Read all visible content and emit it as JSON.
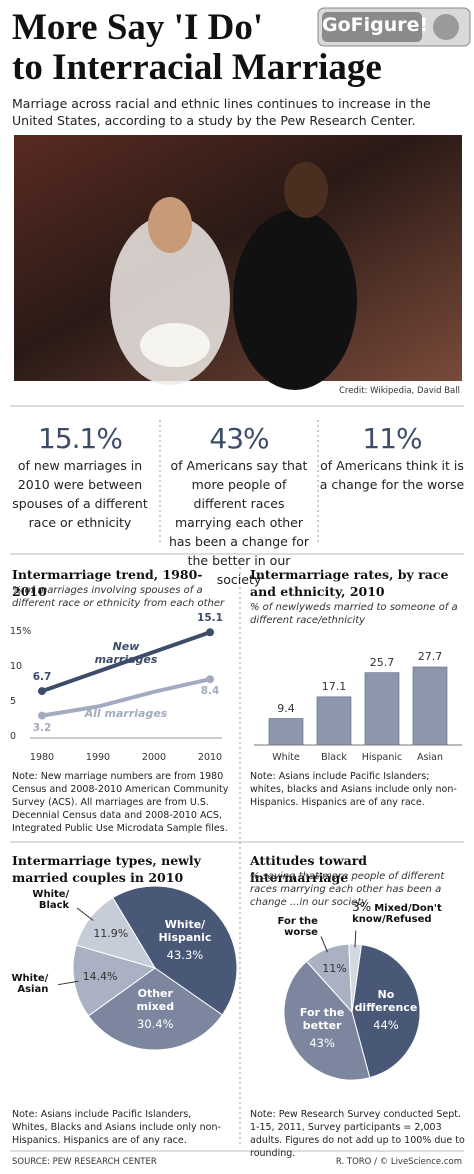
{
  "header": {
    "title_line1": "More Say 'I Do'",
    "title_line2": "to Interracial Marriage",
    "logo": "GoFigure!",
    "subtitle": "Marriage across racial and ethnic lines continues to increase in the United States, according to a study by the Pew Research Center.",
    "photo_credit": "Credit: Wikipedia, David Ball"
  },
  "stats": [
    {
      "figure": "15.1%",
      "text": "of new marriages in 2010 were between spouses of a different race or ethnicity"
    },
    {
      "figure": "43%",
      "text": "of Americans say that more people of different races marrying each other has been a change for the better in our society"
    },
    {
      "figure": "11%",
      "text": "of Americans think it is a change for the worse"
    }
  ],
  "chart_data": [
    {
      "type": "line",
      "title": "Intermarriage trend, 1980-2010",
      "subtitle": "% of marriages involving spouses of a different race or ethnicity from each other",
      "x": [
        1980,
        1990,
        2000,
        2010
      ],
      "series": [
        {
          "name": "New marriages",
          "color": "#3e4c6b",
          "values": [
            6.7,
            9.5,
            12.3,
            15.1
          ]
        },
        {
          "name": "All marriages",
          "color": "#a3abbf",
          "values": [
            3.2,
            4.5,
            6.6,
            8.4
          ]
        }
      ],
      "xlim": [
        1980,
        2010
      ],
      "xticks": [
        1980,
        1990,
        2000,
        2010
      ],
      "ylim": [
        0,
        16
      ],
      "yticks": [
        0,
        5,
        10,
        {
          "value": 15,
          "label": "15%"
        }
      ],
      "note": "Note: New marriage numbers are from 1980 Census and 2008-2010 American Community Survey (ACS). All marriages are from U.S. Decennial Census data and 2008-2010 ACS, Integrated Public Use Microdata Sample files."
    },
    {
      "type": "bar",
      "title": "Intermarriage rates, by race and ethnicity, 2010",
      "subtitle": "% of newlyweds married to someone of a different race/ethnicity",
      "categories": [
        "White",
        "Black",
        "Hispanic",
        "Asian"
      ],
      "values": [
        9.4,
        17.1,
        25.7,
        27.7
      ],
      "color": "#8c96ad",
      "note": "Note: Asians include Pacific Islanders; whites, blacks and Asians include only non-Hispanics. Hispanics are of any race."
    },
    {
      "type": "pie",
      "title": "Intermarriage types, newly married couples in 2010",
      "categories": [
        "White/ Hispanic",
        "Other mixed",
        "White/ Asian",
        "White/ Black"
      ],
      "values": [
        43.3,
        30.4,
        14.4,
        11.9
      ],
      "value_labels": [
        "43.3%",
        "30.4%",
        "14.4%",
        "11.9%"
      ],
      "colors": [
        "#4a5878",
        "#7c879f",
        "#a9b1c2",
        "#c6ccd8"
      ],
      "note": "Note: Asians include Pacific Islanders, Whites, Blacks and Asians include only non-Hispanics. Hispanics are of any race."
    },
    {
      "type": "pie",
      "title": "Attitudes toward intermarriage",
      "subtitle": "% saying that more people of different races marrying each other has been a change ...in our society",
      "categories": [
        "No difference",
        "For the better",
        "For the worse",
        "Mixed/Don't know/Refused"
      ],
      "values": [
        44,
        43,
        11,
        3
      ],
      "value_labels": [
        "44%",
        "43%",
        "11%",
        "3%"
      ],
      "colors": [
        "#4a5878",
        "#7c879f",
        "#a9b1c2",
        "#d3d8e1"
      ],
      "note": "Note: Pew Research Survey conducted Sept. 1-15, 2011, Survey participants = 2,003 adults. Figures do not add up to 100% due to rounding."
    }
  ],
  "footer": {
    "source": "SOURCE: PEW RESEARCH CENTER",
    "credit": "R. TORO / © LiveScience.com"
  }
}
